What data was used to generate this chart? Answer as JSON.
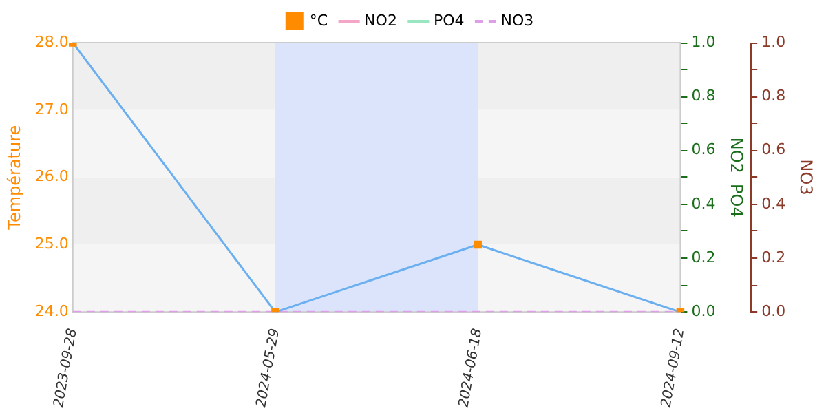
{
  "chart_data": {
    "type": "line",
    "categories": [
      "2023-09-28",
      "2024-05-29",
      "2024-06-18",
      "2024-09-12"
    ],
    "ylabel": "Température",
    "y2label": "NO2  PO4",
    "y3label": "NO3",
    "series": [
      {
        "name": "°C",
        "color": "#6aaff0",
        "colors": [
          "#ff8c00",
          "#ff8c00",
          "#ff8c00",
          "#ff8c00"
        ],
        "values": [
          28,
          24,
          25,
          24
        ],
        "marker": "square",
        "line_style": "solid"
      },
      {
        "name": "NO2",
        "color": "#f4a6c8",
        "values": [
          null,
          null,
          null,
          null
        ],
        "marker": "none",
        "line_style": "solid"
      },
      {
        "name": "PO4",
        "color": "#99e6c0",
        "values": [
          null,
          null,
          null,
          null
        ],
        "marker": "none",
        "line_style": "solid"
      },
      {
        "name": "NO3",
        "color": "#dda0e8",
        "values": [
          0,
          0,
          0,
          0
        ],
        "axis": "y3",
        "marker": "none",
        "line_style": "dashed"
      }
    ],
    "ylim": [
      24,
      28
    ],
    "yticks": [
      {
        "value": 24,
        "label": "24.0"
      },
      {
        "value": 25,
        "label": "25.0"
      },
      {
        "value": 26,
        "label": "26.0"
      },
      {
        "value": 27,
        "label": "27.0"
      },
      {
        "value": 28,
        "label": "28.0"
      }
    ],
    "y2lim": [
      0,
      1
    ],
    "y2ticks": [
      {
        "value": 0,
        "label": "0.0"
      },
      {
        "value": 0.1,
        "label": null
      },
      {
        "value": 0.2,
        "label": "0.2"
      },
      {
        "value": 0.3,
        "label": null
      },
      {
        "value": 0.4,
        "label": "0.4"
      },
      {
        "value": 0.5,
        "label": null
      },
      {
        "value": 0.6,
        "label": "0.6"
      },
      {
        "value": 0.7,
        "label": null
      },
      {
        "value": 0.8,
        "label": "0.8"
      },
      {
        "value": 0.9,
        "label": null
      },
      {
        "value": 1,
        "label": "1.0"
      }
    ],
    "y3lim": [
      0,
      1
    ],
    "y3ticks": [
      {
        "value": 0,
        "label": "0.0"
      },
      {
        "value": 0.1,
        "label": null
      },
      {
        "value": 0.2,
        "label": "0.2"
      },
      {
        "value": 0.3,
        "label": null
      },
      {
        "value": 0.4,
        "label": "0.4"
      },
      {
        "value": 0.5,
        "label": null
      },
      {
        "value": 0.6,
        "label": "0.6"
      },
      {
        "value": 0.7,
        "label": null
      },
      {
        "value": 0.8,
        "label": "0.8"
      },
      {
        "value": 0.9,
        "label": null
      },
      {
        "value": 1,
        "label": "1.0"
      }
    ],
    "bands": [
      {
        "axis": "y",
        "from": 24,
        "to": 25,
        "color": "#f5f5f5"
      },
      {
        "axis": "y",
        "from": 25,
        "to": 26,
        "color": "#efefef"
      },
      {
        "axis": "y",
        "from": 26,
        "to": 27,
        "color": "#f5f5f5"
      },
      {
        "axis": "y",
        "from": 27,
        "to": 28,
        "color": "#efefef"
      },
      {
        "axis": "x",
        "from": "2024-05-29",
        "to": "2024-06-18",
        "color": "#dce4fc"
      }
    ],
    "grid": false,
    "legend": "top"
  }
}
